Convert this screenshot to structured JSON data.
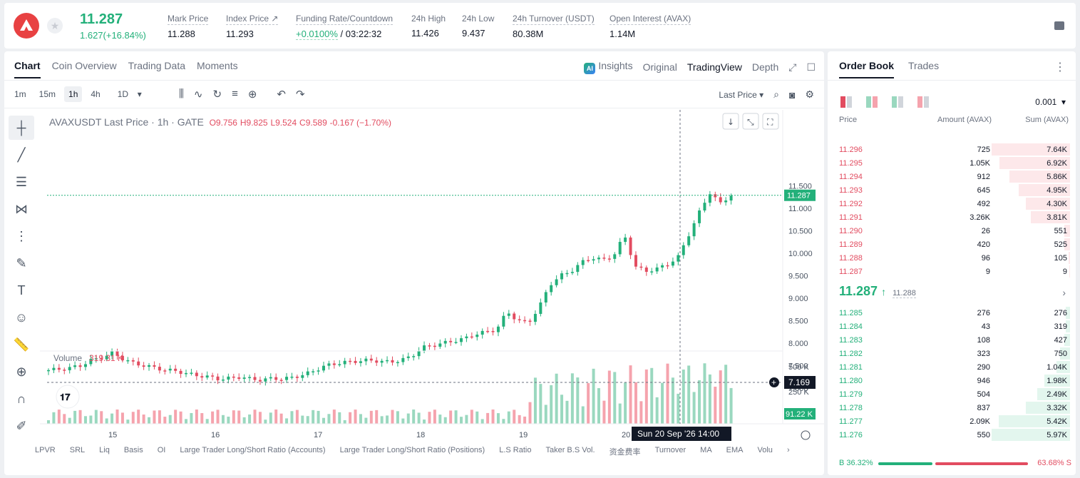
{
  "ticker": {
    "last_price": "11.287",
    "change": "1.627(+16.84%)",
    "mark_price_label": "Mark Price",
    "mark_price": "11.288",
    "index_price_label": "Index Price",
    "index_price": "11.293",
    "funding_label": "Funding Rate/Countdown",
    "funding_rate": "+0.0100%",
    "countdown": "/ 03:22:32",
    "high_label": "24h High",
    "high": "11.426",
    "low_label": "24h Low",
    "low": "9.437",
    "turnover_label": "24h Turnover (USDT)",
    "turnover": "80.38M",
    "oi_label": "Open Interest (AVAX)",
    "oi": "1.14M"
  },
  "chart_tabs": [
    "Chart",
    "Coin Overview",
    "Trading Data",
    "Moments"
  ],
  "view_tabs": {
    "insights": "Insights",
    "original": "Original",
    "tradingview": "TradingView",
    "depth": "Depth",
    "ai": "AI"
  },
  "timeframes": [
    "1m",
    "15m",
    "1h",
    "4h",
    "1D"
  ],
  "price_type": "Last Price",
  "chart_header": {
    "symbol": "AVAXUSDT Last Price · 1h · GATE",
    "o": "O9.756",
    "h": "H9.825",
    "l": "L9.524",
    "c": "C9.589",
    "chg": "-0.167 (−1.70%)"
  },
  "chart_data": {
    "type": "candlestick",
    "x_ticks": [
      "15",
      "16",
      "17",
      "18",
      "19",
      "20"
    ],
    "y_ticks": [
      "11.500",
      "11.000",
      "10.500",
      "10.000",
      "9.500",
      "9.000",
      "8.500",
      "8.000",
      "7.500",
      "7.000"
    ],
    "current_price_label": "11.287",
    "crosshair_price": "7.169",
    "crosshair_time": "Sun 20 Sep '26   14:00",
    "volume_label": "Volume",
    "volume_value": "319.31 K",
    "volume_ticks": [
      "500 K",
      "250 K"
    ],
    "volume_current": "91.22 K",
    "close_path": [
      7.4,
      7.42,
      7.45,
      7.5,
      7.62,
      7.68,
      7.78,
      7.65,
      7.55,
      7.5,
      7.45,
      7.4,
      7.38,
      7.32,
      7.28,
      7.25,
      7.2,
      7.22,
      7.25,
      7.2,
      7.18,
      7.22,
      7.2,
      7.25,
      7.3,
      7.4,
      7.5,
      7.55,
      7.58,
      7.6,
      7.62,
      7.6,
      7.58,
      7.62,
      7.7,
      7.9,
      7.95,
      8.0,
      8.05,
      8.1,
      8.2,
      8.25,
      8.3,
      8.7,
      8.5,
      8.45,
      8.8,
      9.3,
      9.5,
      9.6,
      9.8,
      9.9,
      9.85,
      9.95,
      10.4,
      9.7,
      9.6,
      9.65,
      9.75,
      9.9,
      10.4,
      10.9,
      11.35,
      11.1,
      11.3
    ]
  },
  "bottom_tags": [
    "LPVR",
    "SRL",
    "Liq",
    "Basis",
    "OI",
    "Large Trader Long/Short Ratio (Accounts)",
    "Large Trader Long/Short Ratio (Positions)",
    "L.S Ratio",
    "Taker B.S Vol.",
    "资金费率",
    "Turnover",
    "MA",
    "EMA",
    "Volu"
  ],
  "order_book": {
    "tabs": [
      "Order Book",
      "Trades"
    ],
    "precision": "0.001",
    "headers": {
      "price": "Price",
      "amount": "Amount (AVAX)",
      "sum": "Sum (AVAX)"
    },
    "asks": [
      {
        "p": "11.296",
        "a": "725",
        "s": "7.64K",
        "d": 1.0
      },
      {
        "p": "11.295",
        "a": "1.05K",
        "s": "6.92K",
        "d": 0.9
      },
      {
        "p": "11.294",
        "a": "912",
        "s": "5.86K",
        "d": 0.77
      },
      {
        "p": "11.293",
        "a": "645",
        "s": "4.95K",
        "d": 0.65
      },
      {
        "p": "11.292",
        "a": "492",
        "s": "4.30K",
        "d": 0.56
      },
      {
        "p": "11.291",
        "a": "3.26K",
        "s": "3.81K",
        "d": 0.5
      },
      {
        "p": "11.290",
        "a": "26",
        "s": "551",
        "d": 0.07
      },
      {
        "p": "11.289",
        "a": "420",
        "s": "525",
        "d": 0.07
      },
      {
        "p": "11.288",
        "a": "96",
        "s": "105",
        "d": 0.015
      },
      {
        "p": "11.287",
        "a": "9",
        "s": "9",
        "d": 0.005
      }
    ],
    "mid_price": "11.287",
    "mid_arrow": "↑",
    "mid_mark": "11.288",
    "bids": [
      {
        "p": "11.285",
        "a": "276",
        "s": "276",
        "d": 0.05
      },
      {
        "p": "11.284",
        "a": "43",
        "s": "319",
        "d": 0.055
      },
      {
        "p": "11.283",
        "a": "108",
        "s": "427",
        "d": 0.07
      },
      {
        "p": "11.282",
        "a": "323",
        "s": "750",
        "d": 0.13
      },
      {
        "p": "11.281",
        "a": "290",
        "s": "1.04K",
        "d": 0.17
      },
      {
        "p": "11.280",
        "a": "946",
        "s": "1.98K",
        "d": 0.33
      },
      {
        "p": "11.279",
        "a": "504",
        "s": "2.49K",
        "d": 0.42
      },
      {
        "p": "11.278",
        "a": "837",
        "s": "3.32K",
        "d": 0.56
      },
      {
        "p": "11.277",
        "a": "2.09K",
        "s": "5.42K",
        "d": 0.91
      },
      {
        "p": "11.276",
        "a": "550",
        "s": "5.97K",
        "d": 1.0
      }
    ],
    "buy_ratio": "B 36.32%",
    "sell_ratio": "63.68% S"
  }
}
